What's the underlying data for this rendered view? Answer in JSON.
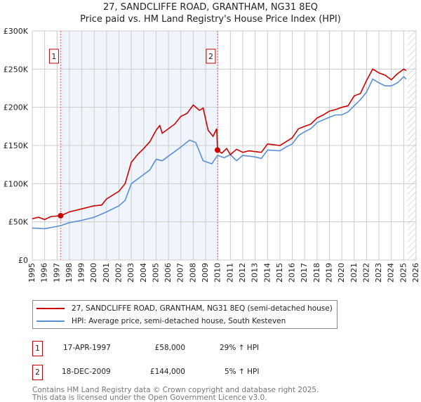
{
  "title": "27, SANDCLIFFE ROAD, GRANTHAM, NG31 8EQ",
  "subtitle": "Price paid vs. HM Land Registry's House Price Index (HPI)",
  "chart_data": {
    "type": "line",
    "xlim": [
      1995,
      2026
    ],
    "ylim": [
      0,
      300000
    ],
    "x_ticks": [
      "1995",
      "1996",
      "1997",
      "1998",
      "1999",
      "2000",
      "2001",
      "2002",
      "2003",
      "2004",
      "2005",
      "2006",
      "2007",
      "2008",
      "2009",
      "2010",
      "2011",
      "2012",
      "2013",
      "2014",
      "2015",
      "2016",
      "2017",
      "2018",
      "2019",
      "2020",
      "2021",
      "2022",
      "2023",
      "2024",
      "2025",
      "2026"
    ],
    "y_ticks": [
      {
        "v": 0,
        "label": "£0"
      },
      {
        "v": 50000,
        "label": "£50K"
      },
      {
        "v": 100000,
        "label": "£100K"
      },
      {
        "v": 150000,
        "label": "£150K"
      },
      {
        "v": 200000,
        "label": "£200K"
      },
      {
        "v": 250000,
        "label": "£250K"
      },
      {
        "v": 300000,
        "label": "£300K"
      }
    ],
    "grid": true,
    "shaded_range": [
      1997.29,
      2009.96
    ],
    "future_hatch_from": 2025.3,
    "series": [
      {
        "name": "27, SANDCLIFFE ROAD, GRANTHAM, NG31 8EQ (semi-detached house)",
        "color": "#cc0000",
        "x": [
          1995,
          1995.5,
          1996,
          1996.5,
          1997.29,
          1998,
          1999,
          2000,
          2000.6,
          2001,
          2002,
          2002.5,
          2003,
          2003.5,
          2004,
          2004.5,
          2005,
          2005.3,
          2005.5,
          2006,
          2006.5,
          2007,
          2007.5,
          2008,
          2008.5,
          2008.8,
          2009.2,
          2009.6,
          2009.9,
          2009.96,
          2010.3,
          2010.7,
          2011,
          2011.5,
          2012,
          2012.5,
          2013,
          2013.5,
          2014,
          2014.5,
          2015,
          2015.5,
          2016,
          2016.5,
          2017,
          2017.5,
          2018,
          2018.5,
          2019,
          2019.5,
          2020,
          2020.5,
          2021,
          2021.5,
          2022,
          2022.5,
          2023,
          2023.5,
          2024,
          2024.5,
          2025,
          2025.2
        ],
        "y": [
          54000,
          56000,
          53000,
          57000,
          58000,
          63000,
          67000,
          71000,
          72000,
          80000,
          90000,
          100000,
          128000,
          138000,
          146000,
          155000,
          170000,
          176000,
          166000,
          172000,
          178000,
          188000,
          192000,
          203000,
          196000,
          199000,
          170000,
          162000,
          172000,
          144000,
          140000,
          146000,
          138000,
          145000,
          141000,
          143000,
          142000,
          141000,
          152000,
          151000,
          150000,
          155000,
          160000,
          172000,
          175000,
          178000,
          186000,
          190000,
          195000,
          197000,
          200000,
          202000,
          215000,
          218000,
          235000,
          250000,
          245000,
          242000,
          236000,
          244000,
          250000,
          248000
        ]
      },
      {
        "name": "HPI: Average price, semi-detached house, South Kesteven",
        "color": "#5b8fd4",
        "x": [
          1995,
          1996,
          1997.29,
          1998,
          1999,
          2000,
          2001,
          2002,
          2002.5,
          2003,
          2004,
          2004.5,
          2005,
          2005.5,
          2006,
          2007,
          2007.7,
          2008.2,
          2008.8,
          2009.5,
          2009.96,
          2010.5,
          2011,
          2011.5,
          2012,
          2013,
          2013.5,
          2014,
          2015,
          2015.5,
          2016,
          2016.5,
          2017,
          2017.5,
          2018,
          2019,
          2019.5,
          2020,
          2020.5,
          2021,
          2021.5,
          2022,
          2022.5,
          2023,
          2023.5,
          2024,
          2024.5,
          2025,
          2025.2
        ],
        "y": [
          42000,
          41000,
          45000,
          49000,
          52000,
          56000,
          63000,
          71000,
          78000,
          100000,
          112000,
          118000,
          132000,
          130000,
          136000,
          148000,
          157000,
          154000,
          130000,
          126000,
          137000,
          134000,
          138000,
          130000,
          137000,
          135000,
          133000,
          144000,
          143000,
          148000,
          152000,
          163000,
          168000,
          172000,
          180000,
          187000,
          190000,
          190000,
          194000,
          202000,
          210000,
          220000,
          237000,
          232000,
          228000,
          228000,
          232000,
          240000,
          237000
        ]
      }
    ],
    "annotations": [
      {
        "label": "1",
        "x": 1997.29,
        "y": 58000
      },
      {
        "label": "2",
        "x": 2009.96,
        "y": 144000
      }
    ]
  },
  "legend": [
    {
      "label": "27, SANDCLIFFE ROAD, GRANTHAM, NG31 8EQ (semi-detached house)",
      "color": "#cc0000"
    },
    {
      "label": "HPI: Average price, semi-detached house, South Kesteven",
      "color": "#5b8fd4"
    }
  ],
  "transactions": [
    {
      "num": "1",
      "date": "17-APR-1997",
      "price": "£58,000",
      "hpi": "29% ↑ HPI"
    },
    {
      "num": "2",
      "date": "18-DEC-2009",
      "price": "£144,000",
      "hpi": "5% ↑ HPI"
    }
  ],
  "footer": [
    "Contains HM Land Registry data © Crown copyright and database right 2025.",
    "This data is licensed under the Open Government Licence v3.0."
  ]
}
